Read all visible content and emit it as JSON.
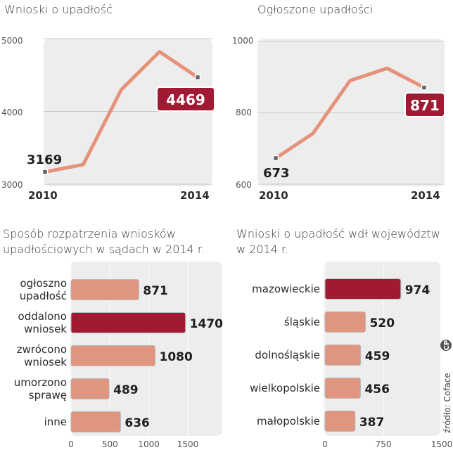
{
  "colors": {
    "line": "#e5927a",
    "bar": "#e0957f",
    "bar_highlight": "#a01a33",
    "highlight_box": "#a01a33",
    "panel_bg": "#ededed"
  },
  "source": "źródło: Coface",
  "logo": "CP",
  "chart_data": [
    {
      "type": "line",
      "title": "Wnioski o upadłość",
      "x": [
        2010,
        2011,
        2012,
        2013,
        2014
      ],
      "values": [
        3169,
        3270,
        4300,
        4820,
        4469
      ],
      "ylim": [
        3000,
        5000
      ],
      "yticks": [
        "3000",
        "4000",
        "5000"
      ],
      "xticks": [
        "2010",
        "2014"
      ],
      "labels": {
        "first": "3169",
        "last": "4469"
      },
      "grid": true
    },
    {
      "type": "line",
      "title": "Ogłoszone upadłości",
      "x": [
        2010,
        2011,
        2012,
        2013,
        2014
      ],
      "values": [
        673,
        742,
        890,
        925,
        871
      ],
      "ylim": [
        600,
        1000
      ],
      "yticks": [
        "600",
        "800",
        "1000"
      ],
      "xticks": [
        "2010",
        "2014"
      ],
      "labels": {
        "first": "673",
        "last": "871"
      },
      "grid": true
    },
    {
      "type": "bar",
      "orientation": "horizontal",
      "title_lines": [
        "Sposób rozpatrzenia wniosków",
        "upadłościowych w sądach w 2014 r."
      ],
      "categories": [
        [
          "ogłoszno",
          "upadłość"
        ],
        [
          "oddalono",
          "wniosek"
        ],
        [
          "zwrócono",
          "wniosek"
        ],
        [
          "umorzono",
          "sprawę"
        ],
        [
          "inne"
        ]
      ],
      "values": [
        871,
        1470,
        1080,
        489,
        636
      ],
      "labels": [
        "871",
        "1470",
        "1080",
        "489",
        "636"
      ],
      "highlight": 1,
      "xlim": [
        0,
        1500
      ],
      "xticks": [
        "0",
        "500",
        "1000",
        "1500"
      ],
      "xtick_values": [
        0,
        500,
        1000,
        1500
      ],
      "grid": true
    },
    {
      "type": "bar",
      "orientation": "horizontal",
      "title_lines": [
        "Wnioski o upadłość wdł województw",
        "w 2014 r."
      ],
      "categories": [
        [
          "mazowieckie"
        ],
        [
          "śląskie"
        ],
        [
          "dolnośląskie"
        ],
        [
          "wielkopolskie"
        ],
        [
          "małopolskie"
        ]
      ],
      "values": [
        974,
        520,
        459,
        456,
        387
      ],
      "labels": [
        "974",
        "520",
        "459",
        "456",
        "387"
      ],
      "highlight": 0,
      "xlim": [
        0,
        1500
      ],
      "xticks": [
        "0",
        "750",
        "1500"
      ],
      "xtick_values": [
        0,
        750,
        1500
      ],
      "grid": true
    }
  ]
}
